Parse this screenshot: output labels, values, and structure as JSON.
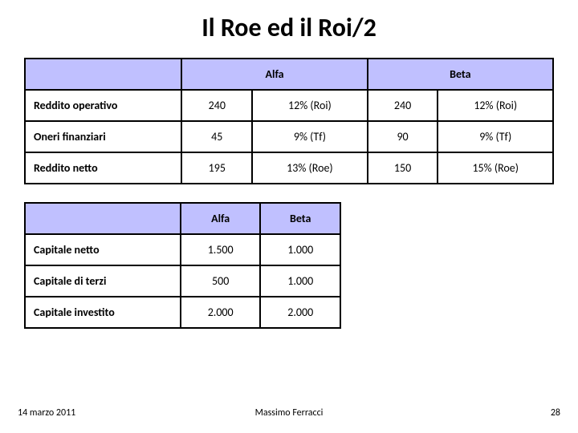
{
  "title": "Il Roe ed il Roi/2",
  "table1": {
    "headers": {
      "alfa": "Alfa",
      "beta": "Beta"
    },
    "rows": [
      {
        "label": "Reddito operativo",
        "alfa_val": "240",
        "alfa_pct": "12% (Roi)",
        "beta_val": "240",
        "beta_pct": "12% (Roi)"
      },
      {
        "label": "Oneri finanziari",
        "alfa_val": "45",
        "alfa_pct": "9% (Tf)",
        "beta_val": "90",
        "beta_pct": "9% (Tf)"
      },
      {
        "label": "Reddito netto",
        "alfa_val": "195",
        "alfa_pct": "13% (Roe)",
        "beta_val": "150",
        "beta_pct": "15% (Roe)"
      }
    ]
  },
  "table2": {
    "headers": {
      "alfa": "Alfa",
      "beta": "Beta"
    },
    "rows": [
      {
        "label": "Capitale netto",
        "alfa": "1.500",
        "beta": "1.000"
      },
      {
        "label": "Capitale di terzi",
        "alfa": "500",
        "beta": "1.000"
      },
      {
        "label": "Capitale investito",
        "alfa": "2.000",
        "beta": "2.000"
      }
    ]
  },
  "footer": {
    "date": "14 marzo 2011",
    "author": "Massimo Ferracci",
    "page": "28"
  },
  "colors": {
    "header_bg": "#c0c0ff",
    "border": "#000000",
    "background": "#ffffff",
    "text": "#000000"
  }
}
